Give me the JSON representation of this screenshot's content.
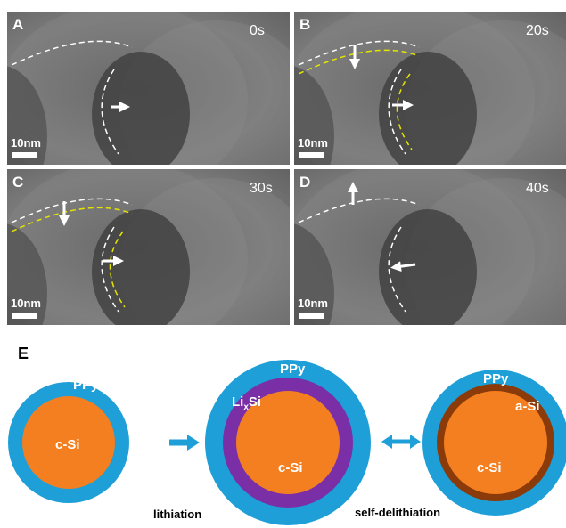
{
  "panels": [
    {
      "label": "A",
      "time": "0s",
      "scale": "10nm"
    },
    {
      "label": "B",
      "time": "20s",
      "scale": "10nm"
    },
    {
      "label": "C",
      "time": "30s",
      "scale": "10nm"
    },
    {
      "label": "D",
      "time": "40s",
      "scale": "10nm"
    }
  ],
  "diagram": {
    "label": "E",
    "particles": [
      {
        "shell": "PPy",
        "core": "c-Si"
      },
      {
        "shell": "PPy",
        "layer": {
          "li": "Li",
          "x": "x",
          "si": "Si"
        },
        "core": "c-Si"
      },
      {
        "shell": "PPy",
        "layer": "a-Si",
        "core": "c-Si"
      }
    ],
    "steps": [
      "lithiation",
      "self-delithiation"
    ]
  }
}
